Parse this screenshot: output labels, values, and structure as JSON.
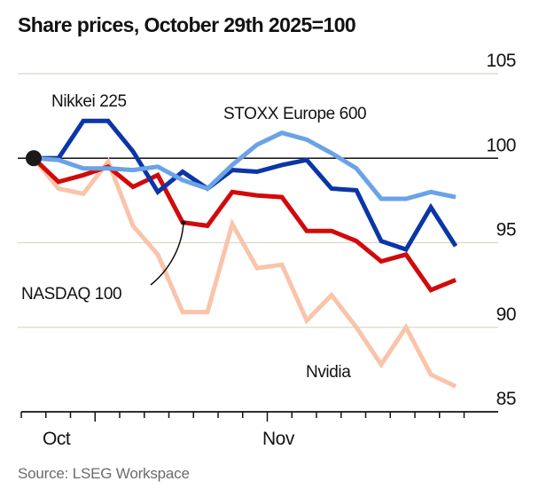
{
  "chart_data": {
    "type": "line",
    "title": "Share prices, October 29th 2025=100",
    "source": "Source: LSEG Workspace",
    "xlabel": "",
    "ylabel": "",
    "ylim": [
      85,
      105
    ],
    "yticks": [
      85,
      90,
      95,
      100,
      105
    ],
    "ytick_labels": [
      "85",
      "90",
      "95",
      "100",
      "105"
    ],
    "baseline": 100,
    "x_month_labels": [
      {
        "label": "Oct",
        "tick_index": 1
      },
      {
        "label": "Nov",
        "tick_index": 10
      }
    ],
    "x_tick_count": 19,
    "grid": true,
    "legend": "inline labels",
    "series": [
      {
        "name": "Nikkei 225",
        "color": "#0a36a6",
        "values": [
          100,
          100,
          102.2,
          102.2,
          100.4,
          98.0,
          99.2,
          98.2,
          99.3,
          99.2,
          99.6,
          99.9,
          98.2,
          98.1,
          95.1,
          94.6,
          97.1,
          94.8
        ]
      },
      {
        "name": "STOXX Europe 600",
        "color": "#6aa3e6",
        "values": [
          100,
          99.9,
          99.4,
          99.4,
          99.3,
          99.5,
          98.7,
          98.2,
          99.6,
          100.8,
          101.5,
          101.1,
          100.3,
          99.4,
          97.6,
          97.6,
          98.0,
          97.7
        ]
      },
      {
        "name": "NASDAQ 100",
        "color": "#d20a0a",
        "values": [
          100,
          98.6,
          99.0,
          99.5,
          98.3,
          99.0,
          96.2,
          96.0,
          98.0,
          97.8,
          97.7,
          95.7,
          95.7,
          95.1,
          93.9,
          94.3,
          92.2,
          92.8
        ]
      },
      {
        "name": "Nvidia",
        "color": "#f9c4aa",
        "values": [
          100,
          98.2,
          97.9,
          99.8,
          96.0,
          94.3,
          90.9,
          90.9,
          96.1,
          93.5,
          93.7,
          90.4,
          91.9,
          90.0,
          87.8,
          90.0,
          87.2,
          86.5
        ]
      }
    ],
    "labels": {
      "nikkei": "Nikkei 225",
      "stoxx": "STOXX Europe 600",
      "nasdaq": "NASDAQ 100",
      "nvidia": "Nvidia"
    }
  }
}
